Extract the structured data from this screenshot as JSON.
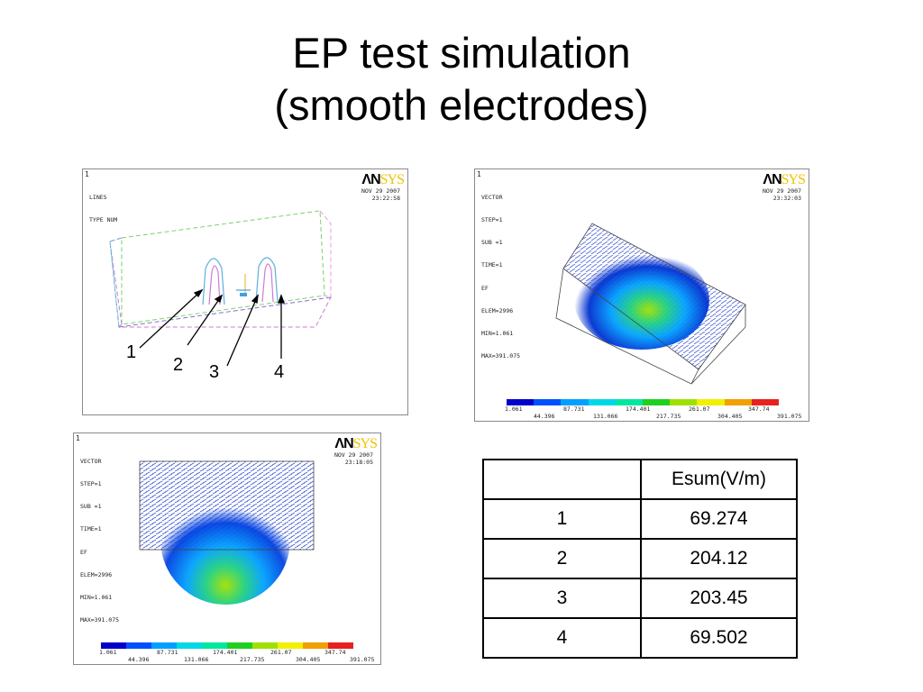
{
  "title": {
    "line1": "EP test simulation",
    "line2": "(smooth electrodes)"
  },
  "panel_geometry": {
    "corner": "1",
    "info_lines": [
      "LINES",
      "TYPE NUM"
    ],
    "logo_an": "ΛN",
    "logo_sys": "SYS",
    "date": "NOV 29 2007",
    "time": "23:22:58",
    "callouts": [
      "1",
      "2",
      "3",
      "4"
    ]
  },
  "panel_vector_iso": {
    "corner": "1",
    "info_lines": [
      "VECTOR",
      "STEP=1",
      "SUB =1",
      "TIME=1",
      "EF",
      "ELEM=2996",
      "MIN=1.061",
      "MAX=391.075"
    ],
    "logo_an": "ΛN",
    "logo_sys": "SYS",
    "date": "NOV 29 2007",
    "time": "23:32:03"
  },
  "panel_vector_front": {
    "corner": "1",
    "info_lines": [
      "VECTOR",
      "STEP=1",
      "SUB =1",
      "TIME=1",
      "EF",
      "ELEM=2996",
      "MIN=1.061",
      "MAX=391.075"
    ],
    "logo_an": "ΛN",
    "logo_sys": "SYS",
    "date": "NOV 29 2007",
    "time": "23:18:05"
  },
  "colorbar": {
    "colors": [
      "#0000c8",
      "#0050ff",
      "#00a0ff",
      "#00d8e8",
      "#00e8a0",
      "#20d020",
      "#a0e000",
      "#f0f000",
      "#f0a000",
      "#e82020"
    ],
    "top_labels": [
      "1.061",
      "87.731",
      "174.401",
      "261.07",
      "347.74"
    ],
    "bottom_labels": [
      "44.396",
      "131.066",
      "217.735",
      "304.405",
      "391.075"
    ]
  },
  "table": {
    "header": [
      "",
      "Esum(V/m)"
    ],
    "rows": [
      [
        "1",
        "69.274"
      ],
      [
        "2",
        "204.12"
      ],
      [
        "3",
        "203.45"
      ],
      [
        "4",
        "69.502"
      ]
    ]
  }
}
